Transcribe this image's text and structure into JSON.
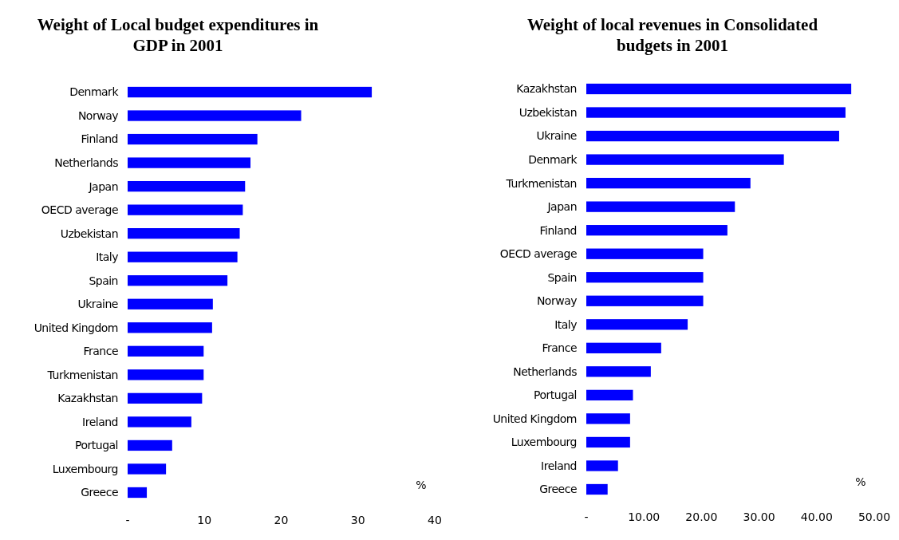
{
  "chart_data": [
    {
      "type": "bar",
      "orientation": "horizontal",
      "title": "Weight of Local budget expenditures in GDP in 2001",
      "categories": [
        "Denmark",
        "Norway",
        "Finland",
        "Netherlands",
        "Japan",
        "OECD average",
        "Uzbekistan",
        "Italy",
        "Spain",
        "Ukraine",
        "United Kingdom",
        "France",
        "Turkmenistan",
        "Kazakhstan",
        "Ireland",
        "Portugal",
        "Luxembourg",
        "Greece"
      ],
      "values": [
        31.8,
        22.6,
        16.9,
        16.0,
        15.3,
        15.0,
        14.6,
        14.3,
        13.0,
        11.1,
        11.0,
        9.9,
        9.9,
        9.7,
        8.3,
        5.8,
        5.0,
        2.5
      ],
      "color": "#0000ff",
      "xlim": [
        0,
        40
      ],
      "xticks": [
        {
          "value": 0,
          "label": "-"
        },
        10,
        20,
        30,
        40
      ],
      "annotations": [
        "%"
      ]
    },
    {
      "type": "bar",
      "orientation": "horizontal",
      "title": "Weight of local revenues in Consolidated budgets in 2001",
      "categories": [
        "Kazakhstan",
        "Uzbekistan",
        "Ukraine",
        "Denmark",
        "Turkmenistan",
        "Japan",
        "Finland",
        "OECD average",
        "Spain",
        "Norway",
        "Italy",
        "France",
        "Netherlands",
        "Portugal",
        "United Kingdom",
        "Luxembourg",
        "Ireland",
        "Greece"
      ],
      "values": [
        46.0,
        45.0,
        43.9,
        34.3,
        28.5,
        25.8,
        24.5,
        20.3,
        20.3,
        20.3,
        17.6,
        13.0,
        11.2,
        8.1,
        7.6,
        7.6,
        5.5,
        3.7
      ],
      "color": "#0000ff",
      "xlim": [
        0,
        50
      ],
      "xticks": [
        {
          "value": 0,
          "label": "-"
        },
        {
          "value": 10,
          "label": "10.00"
        },
        {
          "value": 20,
          "label": "20.00"
        },
        {
          "value": 30,
          "label": "30.00"
        },
        {
          "value": 40,
          "label": "40.00"
        },
        {
          "value": 50,
          "label": "50.00"
        }
      ],
      "annotations": [
        "%"
      ]
    }
  ]
}
